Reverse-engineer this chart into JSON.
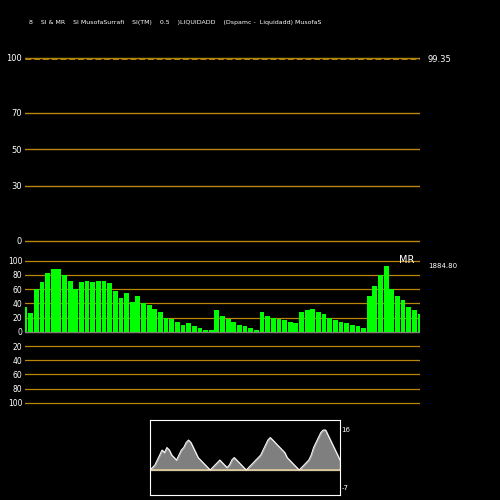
{
  "title_text": "8    SI & MR    SI MusofaSurrafi    SI(TM)    0.5    )LIQUIDADD    (Dspamc -  Liquidadd) MusofaS",
  "background_color": "#000000",
  "orange_color": "#B8860B",
  "green_color": "#00FF00",
  "white_color": "#FFFFFF",
  "gray_color": "#808080",
  "rsi_label_value": "99.35",
  "rsi_yticks": [
    0,
    30,
    50,
    70,
    100
  ],
  "rsi_hlines": [
    0,
    30,
    50,
    70,
    100
  ],
  "rsi_ylim": [
    -5,
    115
  ],
  "mrsi_label": "MR",
  "mrsi_value_label": "1884.80",
  "mrsi_yticks_pos": [
    0,
    20,
    40,
    60,
    80,
    100
  ],
  "mrsi_yticks_neg": [
    -20,
    -40,
    -60,
    -80,
    -100
  ],
  "mrsi_hlines": [
    -100,
    -80,
    -60,
    -40,
    -20,
    0,
    20,
    40,
    60,
    80,
    100
  ],
  "mrsi_ylim": [
    -110,
    115
  ],
  "dspamc_yticks": [
    -7,
    16
  ],
  "dspamc_ylim": [
    -10,
    20
  ],
  "mrsi_bars": [
    35,
    27,
    60,
    70,
    82,
    88,
    88,
    80,
    72,
    60,
    70,
    72,
    70,
    72,
    72,
    68,
    58,
    48,
    55,
    42,
    50,
    40,
    38,
    32,
    28,
    20,
    18,
    14,
    10,
    12,
    8,
    5,
    3,
    2,
    30,
    22,
    18,
    14,
    10,
    8,
    5,
    3,
    28,
    22,
    20,
    18,
    16,
    14,
    12,
    28,
    30,
    32,
    28,
    25,
    20,
    17,
    14,
    12,
    10,
    8,
    6,
    50,
    65,
    80,
    92,
    60,
    50,
    45,
    35,
    30,
    25
  ],
  "dspamc_data": [
    0,
    1,
    2,
    4,
    6,
    8,
    7,
    9,
    8,
    6,
    5,
    4,
    6,
    8,
    9,
    11,
    12,
    11,
    9,
    7,
    5,
    4,
    3,
    2,
    1,
    0,
    1,
    2,
    3,
    4,
    3,
    2,
    1,
    2,
    4,
    5,
    4,
    3,
    2,
    1,
    0,
    1,
    2,
    3,
    4,
    5,
    6,
    8,
    10,
    12,
    13,
    12,
    11,
    10,
    9,
    8,
    7,
    5,
    4,
    3,
    2,
    1,
    0,
    1,
    2,
    3,
    4,
    6,
    9,
    11,
    13,
    15,
    16,
    16,
    14,
    12,
    10,
    8,
    6,
    4
  ]
}
